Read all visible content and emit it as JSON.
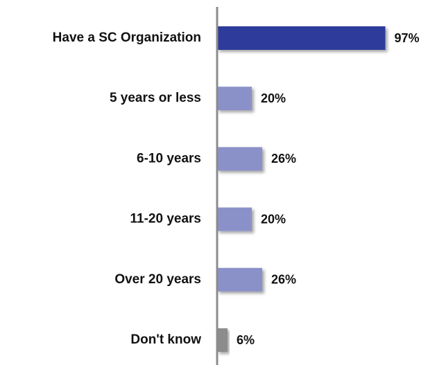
{
  "chart_data": {
    "type": "hbar",
    "categories": [
      "Have a SC Organization",
      "5 years or less",
      "6-10 years",
      "11-20 years",
      "Over 20 years",
      "Don't know"
    ],
    "values": [
      97,
      20,
      26,
      20,
      26,
      6
    ],
    "value_labels": [
      "97%",
      "20%",
      "26%",
      "20%",
      "26%",
      "6%"
    ],
    "colors": [
      "#2f3b9b",
      "#8a91c9",
      "#8a91c9",
      "#8a91c9",
      "#8a91c9",
      "#8c8c8c"
    ],
    "xlim": [
      0,
      100
    ]
  }
}
